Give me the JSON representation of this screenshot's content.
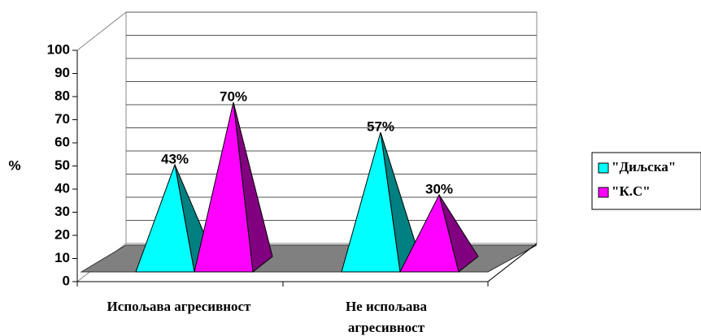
{
  "chart_data": {
    "type": "pyramid3d",
    "ylabel": "%",
    "categories": [
      "Испољава агресивност",
      "Не испољава агресивност"
    ],
    "series": [
      {
        "name": "\"Диљска\"",
        "color": "#00ffff",
        "side_color": "#008080",
        "values": [
          43,
          57
        ],
        "value_labels": [
          "43%",
          "57%"
        ]
      },
      {
        "name": "\"К.С\"",
        "color": "#ff00ff",
        "side_color": "#800080",
        "values": [
          70,
          30
        ],
        "value_labels": [
          "70%",
          "30%"
        ]
      }
    ],
    "ylim": [
      0,
      100
    ],
    "yticks": [
      0,
      10,
      20,
      30,
      40,
      50,
      60,
      70,
      80,
      90,
      100
    ],
    "grid": true,
    "legend": "right"
  }
}
